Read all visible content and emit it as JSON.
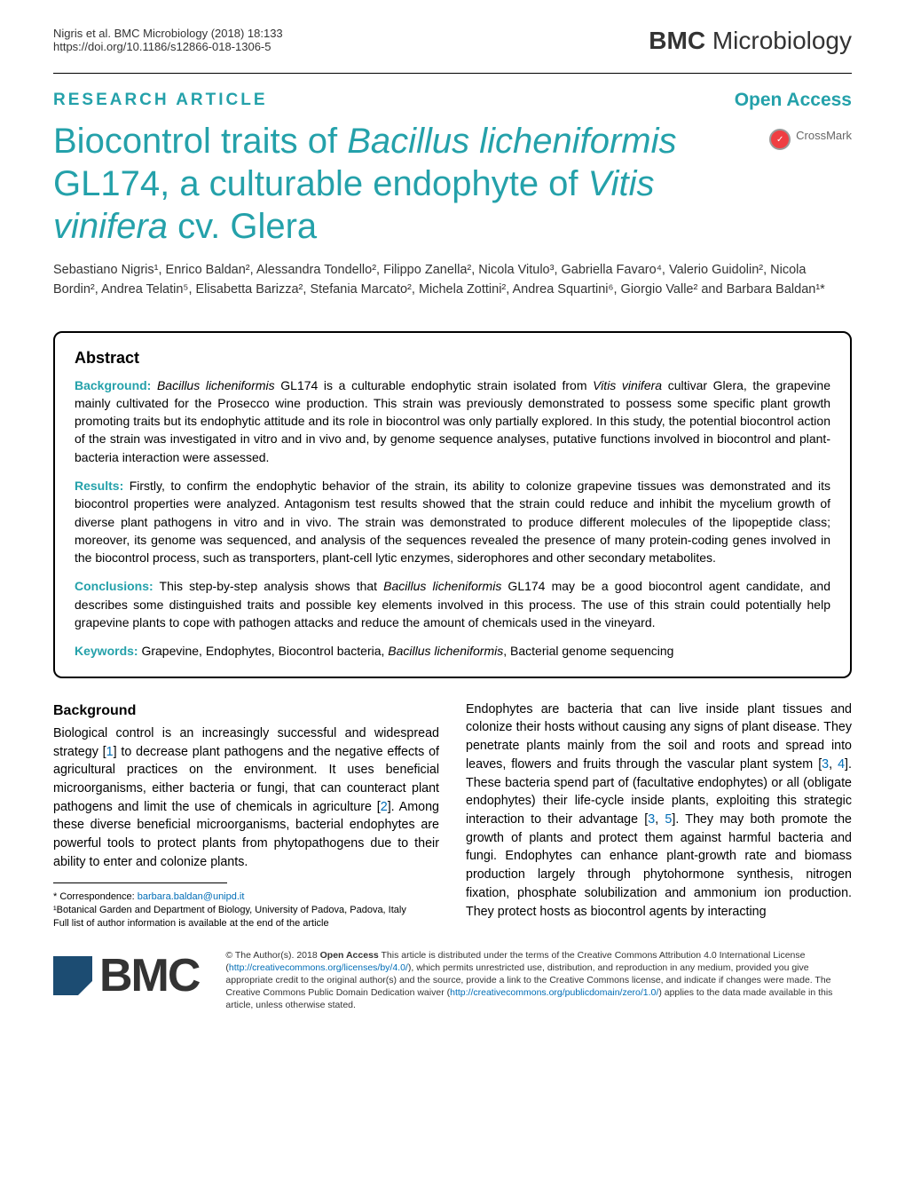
{
  "header": {
    "citation": "Nigris et al. BMC Microbiology (2018) 18:133",
    "doi": "https://doi.org/10.1186/s12866-018-1306-5",
    "journal_prefix": "BMC",
    "journal_name": "Microbiology"
  },
  "article_bar": {
    "type": "RESEARCH ARTICLE",
    "access": "Open Access"
  },
  "crossmark": "CrossMark",
  "title": {
    "part1": "Biocontrol traits of ",
    "italic1": "Bacillus licheniformis",
    "part2": " GL174, a culturable endophyte of ",
    "italic2": "Vitis vinifera",
    "part3": " cv. Glera"
  },
  "authors": "Sebastiano Nigris¹, Enrico Baldan², Alessandra Tondello², Filippo Zanella², Nicola Vitulo³, Gabriella Favaro⁴, Valerio Guidolin², Nicola Bordin², Andrea Telatin⁵, Elisabetta Barizza², Stefania Marcato², Michela Zottini², Andrea Squartini⁶, Giorgio Valle² and Barbara Baldan¹*",
  "abstract": {
    "heading": "Abstract",
    "background_label": "Background:",
    "background_text_1": " Bacillus licheniformis",
    "background_text_2": " GL174 is a culturable endophytic strain isolated from ",
    "background_text_3": "Vitis vinifera",
    "background_text_4": " cultivar Glera, the grapevine mainly cultivated for the Prosecco wine production. This strain was previously demonstrated to possess some specific plant growth promoting traits but its endophytic attitude and its role in biocontrol was only partially explored. In this study, the potential biocontrol action of the strain was investigated in vitro and in vivo and, by genome sequence analyses, putative functions involved in biocontrol and plant-bacteria interaction were assessed.",
    "results_label": "Results:",
    "results_text": " Firstly, to confirm the endophytic behavior of the strain, its ability to colonize grapevine tissues was demonstrated and its biocontrol properties were analyzed. Antagonism test results showed that the strain could reduce and inhibit the mycelium growth of diverse plant pathogens in vitro and in vivo. The strain was demonstrated to produce different molecules of the lipopeptide class; moreover, its genome was sequenced, and analysis of the sequences revealed the presence of many protein-coding genes involved in the biocontrol process, such as transporters, plant-cell lytic enzymes, siderophores and other secondary metabolites.",
    "conclusions_label": "Conclusions:",
    "conclusions_text_1": " This step-by-step analysis shows that ",
    "conclusions_text_2": "Bacillus licheniformis",
    "conclusions_text_3": " GL174 may be a good biocontrol agent candidate, and describes some distinguished traits and possible key elements involved in this process. The use of this strain could potentially help grapevine plants to cope with pathogen attacks and reduce the amount of chemicals used in the vineyard.",
    "keywords_label": "Keywords:",
    "keywords_text_1": " Grapevine, Endophytes, Biocontrol bacteria, ",
    "keywords_text_2": "Bacillus licheniformis",
    "keywords_text_3": ", Bacterial genome sequencing"
  },
  "body": {
    "bg_heading": "Background",
    "col1_text_1": "Biological control is an increasingly successful and widespread strategy [",
    "col1_ref_1": "1",
    "col1_text_2": "] to decrease plant pathogens and the negative effects of agricultural practices on the environment. It uses beneficial microorganisms, either bacteria or fungi, that can counteract plant pathogens and limit the use of chemicals in agriculture [",
    "col1_ref_2": "2",
    "col1_text_3": "]. Among these diverse beneficial microorganisms, bacterial endophytes are powerful tools to protect plants from phytopathogens due to their ability to enter and colonize plants.",
    "col2_text_1": "Endophytes are bacteria that can live inside plant tissues and colonize their hosts without causing any signs of plant disease. They penetrate plants mainly from the soil and roots and spread into leaves, flowers and fruits through the vascular plant system [",
    "col2_ref_1": "3",
    "col2_comma_1": ", ",
    "col2_ref_2": "4",
    "col2_text_2": "]. These bacteria spend part of (facultative endophytes) or all (obligate endophytes) their life-cycle inside plants, exploiting this strategic interaction to their advantage [",
    "col2_ref_3": "3",
    "col2_comma_2": ", ",
    "col2_ref_4": "5",
    "col2_text_3": "]. They may both promote the growth of plants and protect them against harmful bacteria and fungi. Endophytes can enhance plant-growth rate and biomass production largely through phytohormone synthesis, nitrogen fixation, phosphate solubilization and ammonium ion production. They protect hosts as biocontrol agents by interacting"
  },
  "correspondence": {
    "label": "* Correspondence: ",
    "email": "barbara.baldan@unipd.it",
    "affil": "¹Botanical Garden and Department of Biology, University of Padova, Padova, Italy",
    "note": "Full list of author information is available at the end of the article"
  },
  "footer": {
    "bmc": "BMC",
    "license_1": "© The Author(s). 2018 ",
    "license_bold": "Open Access",
    "license_2": " This article is distributed under the terms of the Creative Commons Attribution 4.0 International License (",
    "license_url_1": "http://creativecommons.org/licenses/by/4.0/",
    "license_3": "), which permits unrestricted use, distribution, and reproduction in any medium, provided you give appropriate credit to the original author(s) and the source, provide a link to the Creative Commons license, and indicate if changes were made. The Creative Commons Public Domain Dedication waiver (",
    "license_url_2": "http://creativecommons.org/publicdomain/zero/1.0/",
    "license_4": ") applies to the data made available in this article, unless otherwise stated."
  }
}
